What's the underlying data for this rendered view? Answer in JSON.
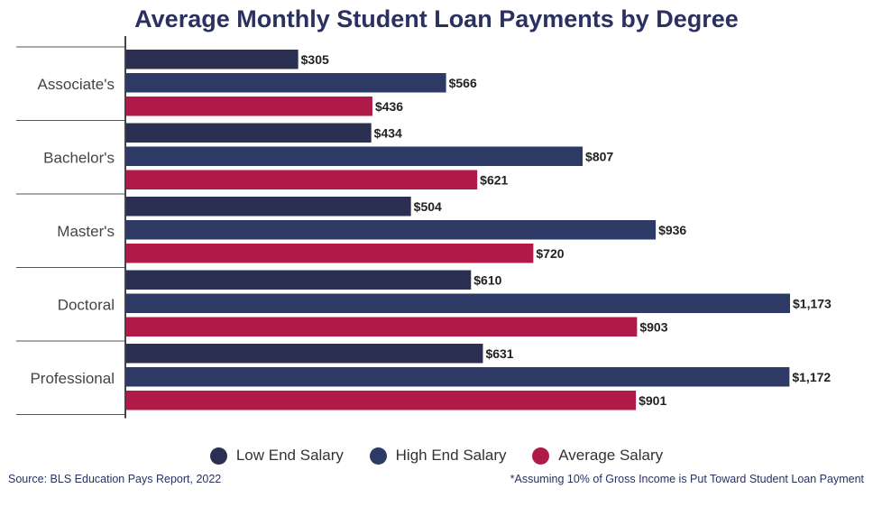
{
  "colors": {
    "low": "#2b2f52",
    "high": "#2e3a66",
    "average": "#b01a48"
  },
  "chart_data": {
    "type": "bar",
    "orientation": "horizontal",
    "title": "Average Monthly Student Loan Payments by Degree",
    "categories": [
      "Associate's",
      "Bachelor's",
      "Master's",
      "Doctoral",
      "Professional"
    ],
    "series": [
      {
        "name": "Low End Salary",
        "values": [
          305,
          434,
          504,
          610,
          631
        ],
        "labels": [
          "$305",
          "$434",
          "$504",
          "$610",
          "$631"
        ]
      },
      {
        "name": "High End Salary",
        "values": [
          566,
          807,
          936,
          1173,
          1172
        ],
        "labels": [
          "$566",
          "$807",
          "$936",
          "$1,173",
          "$1,172"
        ]
      },
      {
        "name": "Average Salary",
        "values": [
          436,
          621,
          720,
          903,
          901
        ],
        "labels": [
          "$436",
          "$621",
          "$720",
          "$903",
          "$901"
        ]
      }
    ],
    "legend_position": "bottom",
    "grid": false,
    "xlim": [
      0,
      1173
    ]
  },
  "source": "Source: BLS Education Pays Report, 2022",
  "footnote": "*Assuming 10% of Gross Income is Put Toward Student Loan Payment"
}
